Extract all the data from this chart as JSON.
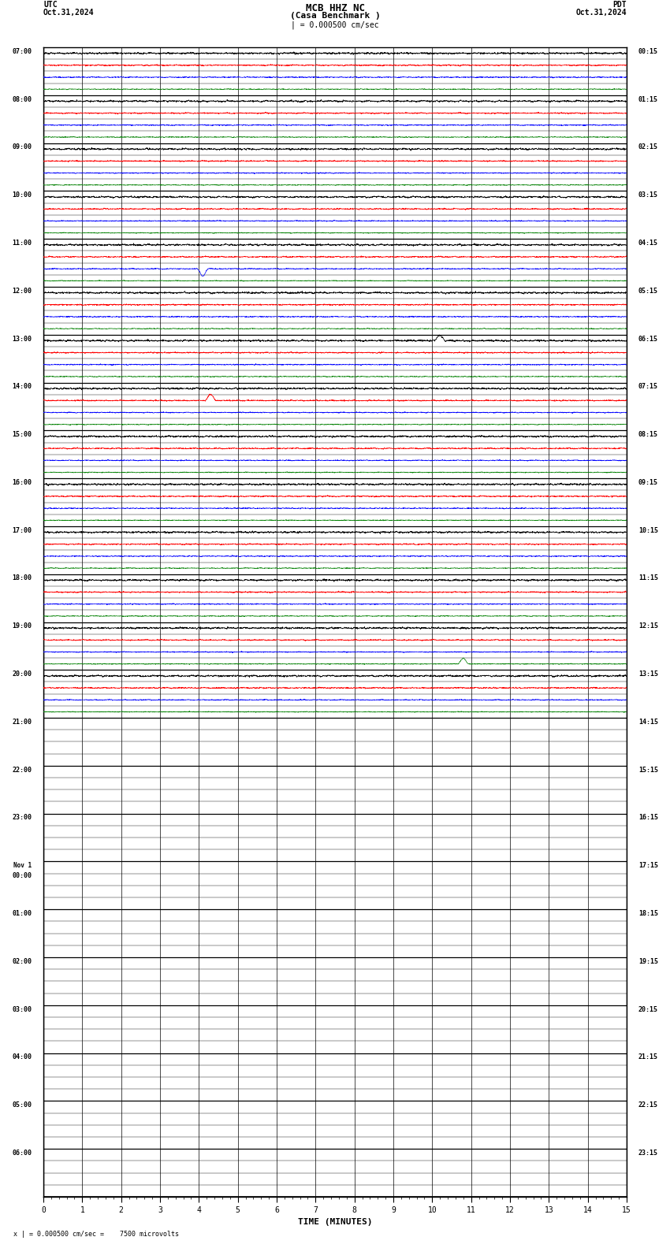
{
  "title_line1": "MCB HHZ NC",
  "title_line2": "(Casa Benchmark )",
  "title_scale": "| = 0.000500 cm/sec",
  "label_left_top": "UTC",
  "label_left_date": "Oct.31,2024",
  "label_right_top": "PDT",
  "label_right_date": "Oct.31,2024",
  "footer": "x | = 0.000500 cm/sec =    7500 microvolts",
  "xlabel": "TIME (MINUTES)",
  "utc_labels": [
    "07:00",
    "08:00",
    "09:00",
    "10:00",
    "11:00",
    "12:00",
    "13:00",
    "14:00",
    "15:00",
    "16:00",
    "17:00",
    "18:00",
    "19:00",
    "20:00",
    "21:00",
    "22:00",
    "23:00",
    "Nov 1\n00:00",
    "01:00",
    "02:00",
    "03:00",
    "04:00",
    "05:00",
    "06:00"
  ],
  "pdt_labels": [
    "00:15",
    "01:15",
    "02:15",
    "03:15",
    "04:15",
    "05:15",
    "06:15",
    "07:15",
    "08:15",
    "09:15",
    "10:15",
    "11:15",
    "12:15",
    "13:15",
    "14:15",
    "15:15",
    "16:15",
    "17:15",
    "18:15",
    "19:15",
    "20:15",
    "21:15",
    "22:15",
    "23:15"
  ],
  "num_hour_rows": 24,
  "traces_per_row": 4,
  "trace_colors": [
    "black",
    "red",
    "blue",
    "green"
  ],
  "bg_color": "white",
  "active_rows": 14,
  "noise_amp": [
    0.1,
    0.07,
    0.055,
    0.045
  ],
  "spike_events": [
    {
      "row": 4,
      "trace": 2,
      "x": 4.1,
      "amplitude": -0.55
    },
    {
      "row": 6,
      "trace": 0,
      "x": 10.2,
      "amplitude": 0.45
    },
    {
      "row": 7,
      "trace": 1,
      "x": 4.3,
      "amplitude": 0.5
    },
    {
      "row": 12,
      "trace": 3,
      "x": 10.8,
      "amplitude": 0.45
    }
  ]
}
